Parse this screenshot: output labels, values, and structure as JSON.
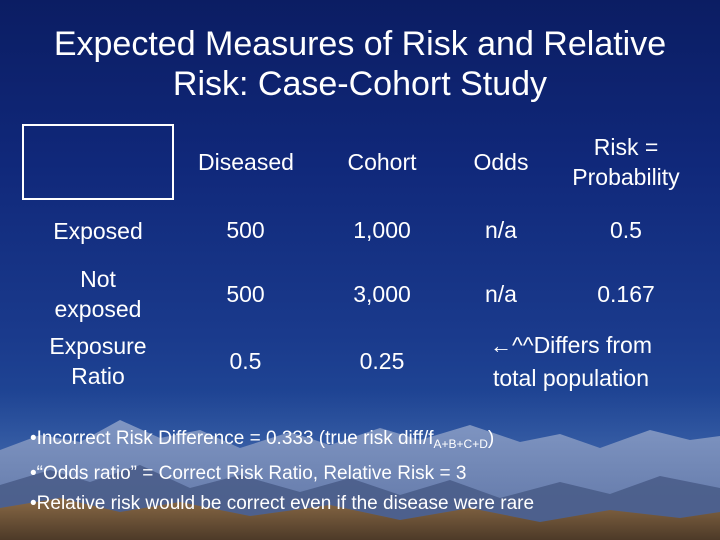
{
  "slide": {
    "title_line1": "Expected Measures of Risk and Relative",
    "title_line2": "Risk: Case-Cohort Study"
  },
  "table": {
    "headers": [
      "",
      "Diseased",
      "Cohort",
      "Odds",
      "Risk =",
      "Probability"
    ],
    "rows": [
      {
        "label": "Exposed",
        "diseased": "500",
        "cohort": "1,000",
        "odds": "n/a",
        "risk": "0.5"
      },
      {
        "label_line1": "Not",
        "label_line2": "exposed",
        "diseased": "500",
        "cohort": "3,000",
        "odds": "n/a",
        "risk": "0.167"
      },
      {
        "label_line1": "Exposure",
        "label_line2": "Ratio",
        "diseased": "0.5",
        "cohort": "0.25",
        "note_arrow": "←",
        "note_line1": "^^Differs from",
        "note_line2": "total population"
      }
    ]
  },
  "bullets": [
    {
      "prefix": "•Incorrect Risk Difference = 0.333 (true risk diff/f",
      "subscript": "A+B+C+D",
      "suffix": ")"
    },
    {
      "text": "•“Odds ratio” = Correct Risk Ratio, Relative Risk = 3"
    },
    {
      "text": "•Relative risk would be correct even if the disease were rare"
    }
  ],
  "colors": {
    "background_top": "#0b1d63",
    "background_bottom": "#2a5da6",
    "text": "#ffffff",
    "mountain_far": "#6d7fae",
    "mountain_near": "#7a5a3a"
  }
}
